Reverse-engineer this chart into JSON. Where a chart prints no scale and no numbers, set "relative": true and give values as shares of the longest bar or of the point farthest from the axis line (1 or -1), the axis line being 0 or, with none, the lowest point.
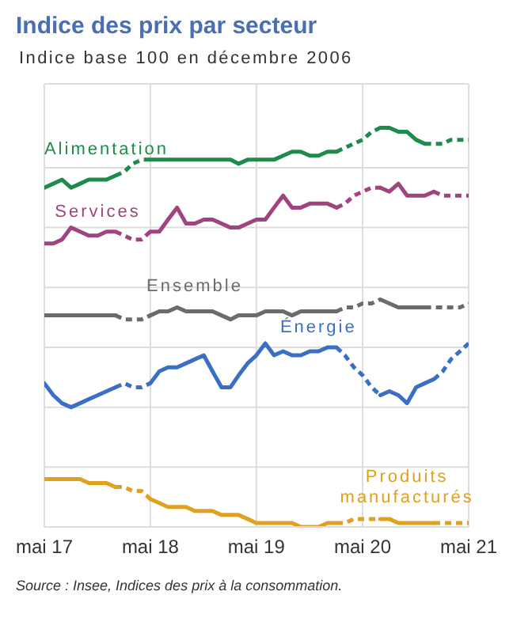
{
  "chart_data": {
    "type": "line",
    "title": "Indice des prix par secteur",
    "subtitle": "Indice base 100 en décembre 2006",
    "annotations": [
      "Source : Insee, Indices des prix à la consommation."
    ],
    "relative": true,
    "grid": true,
    "x": [
      "2017-05",
      "2017-06",
      "2017-07",
      "2017-08",
      "2017-09",
      "2017-10",
      "2017-11",
      "2017-12",
      "2018-01",
      "2018-02",
      "2018-03",
      "2018-04",
      "2018-05",
      "2018-06",
      "2018-07",
      "2018-08",
      "2018-09",
      "2018-10",
      "2018-11",
      "2018-12",
      "2019-01",
      "2019-02",
      "2019-03",
      "2019-04",
      "2019-05",
      "2019-06",
      "2019-07",
      "2019-08",
      "2019-09",
      "2019-10",
      "2019-11",
      "2019-12",
      "2020-01",
      "2020-02",
      "2020-03",
      "2020-04",
      "2020-05",
      "2020-06",
      "2020-07",
      "2020-08",
      "2020-09",
      "2020-10",
      "2020-11",
      "2020-12",
      "2021-01"
    ],
    "xlim": [
      "2017-05",
      "2021-05"
    ],
    "xticks": [
      {
        "value": "2017-05",
        "label": "mai 17"
      },
      {
        "value": "2018-05",
        "label": "mai 18"
      },
      {
        "value": "2019-05",
        "label": "mai 19"
      },
      {
        "value": "2020-05",
        "label": "mai 20"
      },
      {
        "value": "2021-05",
        "label": "mai 21"
      }
    ],
    "series": [
      {
        "name": "Alimentation",
        "color": "#1e8a4c",
        "line_style": "solid",
        "values": [
          0.85,
          0.86,
          0.87,
          0.85,
          0.86,
          0.87,
          0.87,
          0.87,
          0.88,
          null,
          null,
          null,
          0.92,
          0.92,
          0.92,
          0.92,
          0.92,
          0.92,
          0.92,
          0.92,
          0.92,
          0.92,
          0.91,
          0.92,
          0.92,
          0.92,
          0.92,
          0.93,
          0.94,
          0.94,
          0.93,
          0.93,
          0.94,
          0.94,
          null,
          null,
          null,
          null,
          1,
          1,
          0.99,
          0.99,
          0.97,
          0.96,
          null
        ]
      },
      {
        "name": "Services",
        "color": "#a0447e",
        "line_style": "solid",
        "values": [
          0.71,
          0.71,
          0.72,
          0.75,
          0.74,
          0.73,
          0.73,
          0.74,
          0.74,
          null,
          null,
          null,
          0.74,
          0.74,
          0.77,
          0.8,
          0.76,
          0.76,
          0.77,
          0.77,
          0.76,
          0.75,
          0.75,
          0.76,
          0.77,
          0.77,
          0.8,
          0.83,
          0.8,
          0.8,
          0.81,
          0.81,
          0.81,
          0.8,
          null,
          null,
          null,
          null,
          0.85,
          0.84,
          0.86,
          0.83,
          0.83,
          0.83,
          0.84
        ]
      },
      {
        "name": "Ensemble",
        "color": "#6b6b6b",
        "line_style": "solid",
        "values": [
          0.53,
          0.53,
          0.53,
          0.53,
          0.53,
          0.53,
          0.53,
          0.53,
          0.53,
          null,
          null,
          null,
          0.53,
          0.54,
          0.54,
          0.55,
          0.54,
          0.54,
          0.54,
          0.54,
          0.53,
          0.52,
          0.53,
          0.53,
          0.53,
          0.54,
          0.54,
          0.54,
          0.53,
          0.54,
          0.54,
          0.54,
          0.54,
          0.54,
          null,
          null,
          null,
          null,
          0.57,
          0.56,
          0.55,
          0.55,
          0.55,
          0.55,
          null
        ]
      },
      {
        "name": "Énergie",
        "color": "#3a6fc4",
        "line_style": "solid",
        "values": [
          0.36,
          0.33,
          0.31,
          0.3,
          0.31,
          0.32,
          0.33,
          0.34,
          0.35,
          null,
          null,
          null,
          0.36,
          0.39,
          0.4,
          0.4,
          0.41,
          0.42,
          0.43,
          0.39,
          0.35,
          0.35,
          0.38,
          0.41,
          0.43,
          0.46,
          0.43,
          0.44,
          0.43,
          0.43,
          0.44,
          0.44,
          0.45,
          0.45,
          null,
          null,
          null,
          null,
          0.33,
          0.34,
          0.33,
          0.31,
          0.35,
          0.36,
          0.37
        ]
      },
      {
        "name": "Produits manufacturés",
        "color": "#e0a020",
        "line_style": "solid",
        "values": [
          0.12,
          0.12,
          0.12,
          0.12,
          0.12,
          0.11,
          0.11,
          0.11,
          0.1,
          null,
          null,
          null,
          0.07,
          0.06,
          0.05,
          0.05,
          0.05,
          0.04,
          0.04,
          0.04,
          0.03,
          0.03,
          0.03,
          0.02,
          0.01,
          0.01,
          0.01,
          0.01,
          0.01,
          0,
          0,
          0,
          0.01,
          0.01,
          null,
          null,
          null,
          null,
          0.02,
          0.02,
          0.01,
          0.01,
          0.01,
          0.01,
          0.01
        ]
      },
      {
        "color": "#1e8a4d",
        "line_style": "dashed",
        "x": [
          "2018-01",
          "2018-02",
          "2018-03",
          "2018-04",
          "2018-05"
        ],
        "values": [
          0.88,
          0.89,
          0.91,
          0.92,
          0.92
        ]
      },
      {
        "color": "#1e8a4e",
        "line_style": "dashed",
        "x": [
          "2020-02",
          "2020-03",
          "2020-04",
          "2020-05",
          "2020-06",
          "2020-07"
        ],
        "values": [
          0.94,
          0.95,
          0.96,
          0.97,
          0.99,
          1
        ]
      },
      {
        "color": "#1e8a4f",
        "line_style": "dashed",
        "x": [
          "2020-12",
          "2021-01",
          "2021-02",
          "2021-03",
          "2021-04",
          "2021-05"
        ],
        "values": [
          0.96,
          0.96,
          0.96,
          0.97,
          0.97,
          0.97
        ]
      },
      {
        "color": "#a0447f",
        "line_style": "dashed",
        "x": [
          "2018-01",
          "2018-02",
          "2018-03",
          "2018-04",
          "2018-05"
        ],
        "values": [
          0.74,
          0.73,
          0.72,
          0.72,
          0.74
        ]
      },
      {
        "color": "#a04480",
        "line_style": "dashed",
        "x": [
          "2020-02",
          "2020-03",
          "2020-04",
          "2020-05",
          "2020-06",
          "2020-07"
        ],
        "values": [
          0.8,
          0.81,
          0.83,
          0.84,
          0.85,
          0.85
        ]
      },
      {
        "color": "#a04481",
        "line_style": "dashed",
        "x": [
          "2021-01",
          "2021-02",
          "2021-03",
          "2021-04",
          "2021-05"
        ],
        "values": [
          0.84,
          0.83,
          0.83,
          0.83,
          0.83
        ]
      },
      {
        "color": "#6b6b6c",
        "line_style": "dashed",
        "x": [
          "2018-01",
          "2018-02",
          "2018-03",
          "2018-04",
          "2018-05"
        ],
        "values": [
          0.53,
          0.52,
          0.52,
          0.52,
          0.53
        ]
      },
      {
        "color": "#6b6b6d",
        "line_style": "dashed",
        "x": [
          "2020-02",
          "2020-03",
          "2020-04",
          "2020-05",
          "2020-06",
          "2020-07"
        ],
        "values": [
          0.54,
          0.55,
          0.55,
          0.56,
          0.56,
          0.57
        ]
      },
      {
        "color": "#6b6b6e",
        "line_style": "dashed",
        "x": [
          "2020-12",
          "2021-01",
          "2021-02",
          "2021-03",
          "2021-04",
          "2021-05"
        ],
        "values": [
          0.55,
          0.55,
          0.55,
          0.55,
          0.55,
          0.56
        ]
      },
      {
        "color": "#3a6fc5",
        "line_style": "dashed",
        "x": [
          "2018-01",
          "2018-02",
          "2018-03",
          "2018-04",
          "2018-05"
        ],
        "values": [
          0.35,
          0.36,
          0.35,
          0.35,
          0.36
        ]
      },
      {
        "color": "#3a6fc6",
        "line_style": "dashed",
        "x": [
          "2020-02",
          "2020-03",
          "2020-04",
          "2020-05",
          "2020-06",
          "2020-07"
        ],
        "values": [
          0.45,
          0.43,
          0.4,
          0.38,
          0.35,
          0.33
        ]
      },
      {
        "color": "#3a6fc7",
        "line_style": "dashed",
        "x": [
          "2021-01",
          "2021-02",
          "2021-03",
          "2021-04",
          "2021-05"
        ],
        "values": [
          0.37,
          0.39,
          0.42,
          0.44,
          0.46
        ]
      },
      {
        "color": "#e0a021",
        "line_style": "dashed",
        "x": [
          "2018-01",
          "2018-02",
          "2018-03",
          "2018-04",
          "2018-05"
        ],
        "values": [
          0.1,
          0.1,
          0.09,
          0.09,
          0.07
        ]
      },
      {
        "color": "#e0a022",
        "line_style": "dashed",
        "x": [
          "2020-02",
          "2020-03",
          "2020-04",
          "2020-05",
          "2020-06",
          "2020-07"
        ],
        "values": [
          0.01,
          0.01,
          0.02,
          0.02,
          0.02,
          0.02
        ]
      },
      {
        "color": "#e0a023",
        "line_style": "dashed",
        "x": [
          "2021-01",
          "2021-02",
          "2021-03",
          "2021-04",
          "2021-05"
        ],
        "values": [
          0.01,
          0.01,
          0.01,
          0.01,
          0.01
        ]
      }
    ]
  }
}
